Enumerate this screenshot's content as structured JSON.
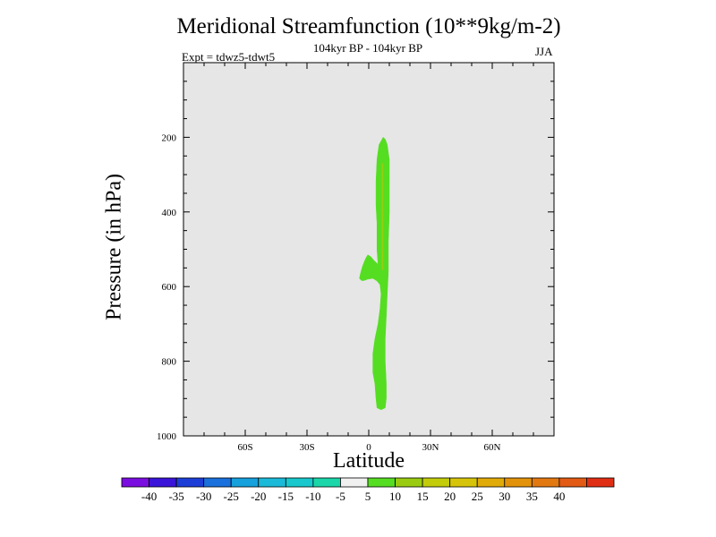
{
  "chart_data": {
    "type": "contour",
    "title": "Meridional Streamfunction (10**9kg/m-2)",
    "subtitle": "104kyr BP - 104kyr BP",
    "left_label": "Expt = tdwz5-tdwt5",
    "right_label": "JJA",
    "xlabel": "Latitude",
    "ylabel": "Pressure (in hPa)",
    "xlim": [
      -90,
      90
    ],
    "ylim": [
      1000,
      0
    ],
    "y_reversed": true,
    "x_ticks": [
      {
        "value": -60,
        "label": "60S"
      },
      {
        "value": -30,
        "label": "30S"
      },
      {
        "value": 0,
        "label": "0"
      },
      {
        "value": 30,
        "label": "30N"
      },
      {
        "value": 60,
        "label": "60N"
      }
    ],
    "y_ticks": [
      {
        "value": 200,
        "label": "200"
      },
      {
        "value": 400,
        "label": "400"
      },
      {
        "value": 600,
        "label": "600"
      },
      {
        "value": 800,
        "label": "800"
      },
      {
        "value": 1000,
        "label": "1000"
      }
    ],
    "background_color": "#e6e6e6",
    "filled_regions": [
      {
        "level": "5 to 10",
        "color": "#55dd22",
        "outline": [
          [
            7,
            200
          ],
          [
            8,
            205
          ],
          [
            9,
            220
          ],
          [
            10,
            260
          ],
          [
            10,
            320
          ],
          [
            10,
            400
          ],
          [
            9.5,
            480
          ],
          [
            9.5,
            560
          ],
          [
            9,
            620
          ],
          [
            8.5,
            680
          ],
          [
            8,
            740
          ],
          [
            8,
            800
          ],
          [
            8.5,
            860
          ],
          [
            8.5,
            900
          ],
          [
            8,
            925
          ],
          [
            6,
            930
          ],
          [
            4,
            925
          ],
          [
            3.5,
            900
          ],
          [
            3,
            860
          ],
          [
            2,
            830
          ],
          [
            2,
            780
          ],
          [
            3,
            740
          ],
          [
            4.5,
            700
          ],
          [
            5.5,
            660
          ],
          [
            6,
            620
          ],
          [
            5.5,
            595
          ],
          [
            4,
            585
          ],
          [
            2,
            578
          ],
          [
            -0.5,
            580
          ],
          [
            -2.5,
            584
          ],
          [
            -3.5,
            584
          ],
          [
            -4.5,
            578
          ],
          [
            -4,
            565
          ],
          [
            -3,
            545
          ],
          [
            -1.5,
            525
          ],
          [
            -0.5,
            515
          ],
          [
            1,
            520
          ],
          [
            2.5,
            530
          ],
          [
            4.5,
            540
          ],
          [
            4,
            500
          ],
          [
            4,
            430
          ],
          [
            3.5,
            380
          ],
          [
            3.5,
            320
          ],
          [
            4,
            260
          ],
          [
            5,
            220
          ]
        ]
      },
      {
        "level": "10 to 15",
        "color": "#99cc11",
        "outline": [
          [
            6.4,
            270
          ],
          [
            7.0,
            270
          ],
          [
            7.0,
            555
          ],
          [
            6.4,
            555
          ]
        ]
      }
    ],
    "colorbar": {
      "colors": [
        "#7a0ee0",
        "#3a14d8",
        "#1c3ed6",
        "#1a70dc",
        "#16a0dc",
        "#1abad8",
        "#18c8cc",
        "#1ad6a8",
        "#f0f0f0",
        "#55dd22",
        "#99cc11",
        "#c2cc0a",
        "#d6c40a",
        "#e0aa08",
        "#e2920a",
        "#e27810",
        "#e25a14",
        "#e02e14"
      ],
      "labels": [
        "-40",
        "-35",
        "-30",
        "-25",
        "-20",
        "-15",
        "-10",
        "-5",
        "5",
        "10",
        "15",
        "20",
        "25",
        "30",
        "35",
        "40"
      ]
    }
  }
}
